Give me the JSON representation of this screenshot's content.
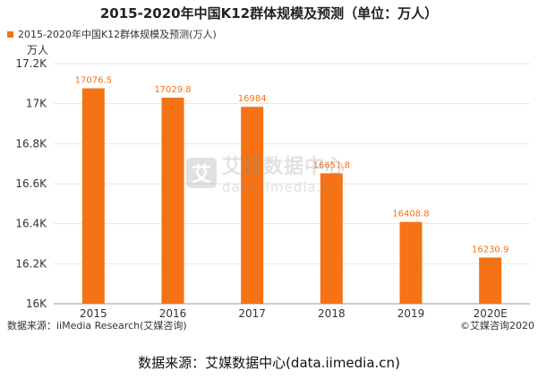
{
  "chart_data": {
    "type": "bar",
    "title": "2015-2020年中国K12群体规模及预测（单位：万人）",
    "ylabel": "万人",
    "categories": [
      "2015",
      "2016",
      "2017",
      "2018",
      "2019",
      "2020E"
    ],
    "series": [
      {
        "name": "2015-2020年中国K12群体规模及预测(万人)",
        "values": [
          17076.5,
          17029.8,
          16984,
          16651.8,
          16408.8,
          16230.9
        ],
        "labels": [
          "17076.5",
          "17029.8",
          "16984",
          "16651.8",
          "16408.8",
          "16230.9"
        ],
        "color": "#f57314"
      }
    ],
    "ylim": [
      16000,
      17200
    ],
    "yticks": [
      16000,
      16200,
      16400,
      16600,
      16800,
      17000,
      17200
    ],
    "ytick_labels": [
      "16K",
      "16.2K",
      "16.4K",
      "16.6K",
      "16.8K",
      "17K",
      "17.2K"
    ],
    "grid": true
  },
  "colors": {
    "bar": "#f57314",
    "grid": "#e6e6e6",
    "axis": "#999999"
  },
  "watermark": {
    "icon_char": "艾",
    "name": "艾媒数据中心",
    "url": "data.iimedia.cn"
  },
  "source_left": "数据来源：iiMedia Research(艾媒咨询)",
  "source_right": "©艾媒咨询2020",
  "footer": "数据来源：艾媒数据中心(data.iimedia.cn)"
}
